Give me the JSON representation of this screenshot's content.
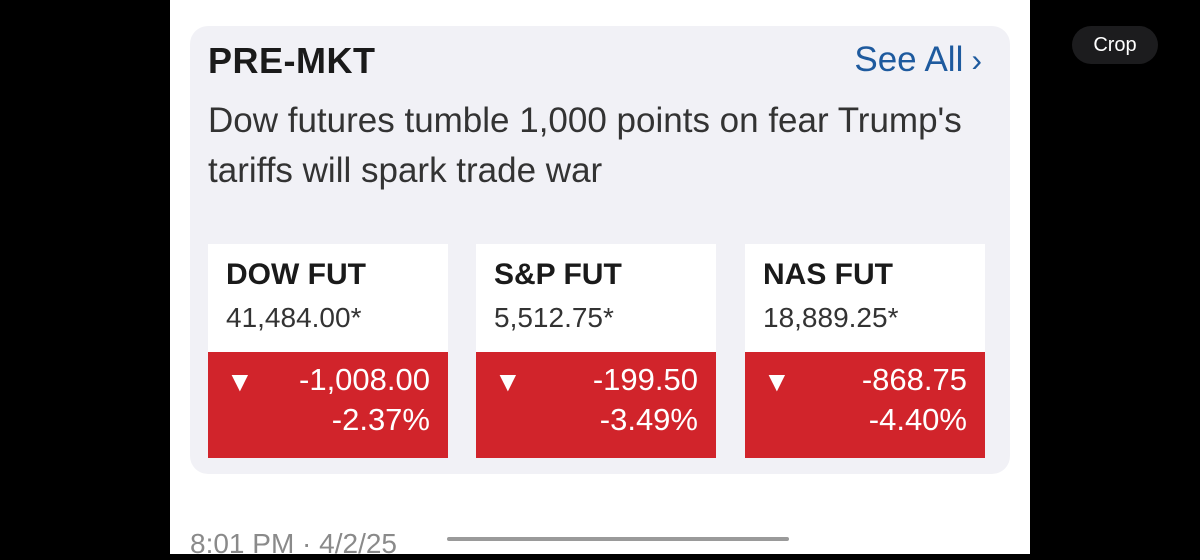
{
  "card": {
    "section_label": "PRE-MKT",
    "see_all_label": "See All",
    "see_all_icon": "chevron-right-icon",
    "headline": "Dow futures tumble 1,000 points on fear Trump's tariffs will spark trade war"
  },
  "tiles": [
    {
      "name": "DOW FUT",
      "price": "41,484.00*",
      "change": "-1,008.00",
      "percent": "-2.37%",
      "direction": "down"
    },
    {
      "name": "S&P FUT",
      "price": "5,512.75*",
      "change": "-199.50",
      "percent": "-3.49%",
      "direction": "down"
    },
    {
      "name": "NAS FUT",
      "price": "18,889.25*",
      "change": "-868.75",
      "percent": "-4.40%",
      "direction": "down"
    }
  ],
  "post": {
    "timestamp": "8:01 PM · 4/2/25"
  },
  "toolbar": {
    "crop_label": "Crop"
  },
  "colors": {
    "down": "#d1242b",
    "link": "#1e5a9e",
    "card_bg": "#f1f1f6"
  }
}
